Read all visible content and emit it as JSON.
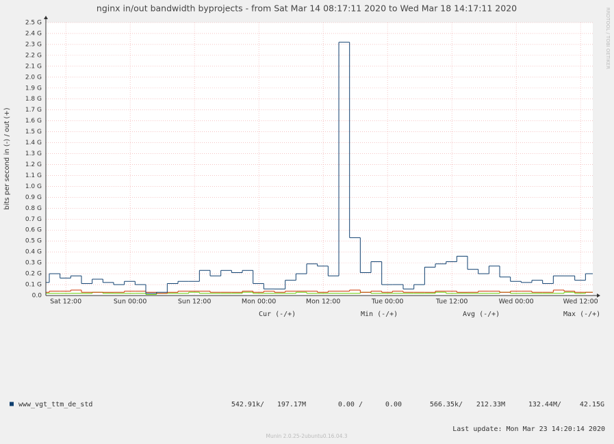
{
  "chart_data": {
    "type": "step",
    "title": "nginx in/out bandwidth byprojects - from Sat Mar 14 08:17:11 2020 to Wed Mar 18 14:17:11 2020",
    "y_label": "bits per second in (-) / out (+)",
    "watermark": "RRDTOOL / TOBI OETIKER",
    "x": [
      0,
      0.64,
      2.64,
      4.64,
      6.64,
      8.64,
      10.64,
      12.64,
      14.64,
      16.64,
      18.64,
      20.64,
      22.64,
      24.64,
      26.64,
      28.64,
      30.64,
      32.64,
      34.64,
      36.64,
      38.64,
      40.64,
      42.64,
      44.64,
      46.64,
      48.64,
      50.64,
      52.64,
      54.64,
      56.64,
      58.64,
      60.64,
      62.64,
      64.64,
      66.64,
      68.64,
      70.64,
      72.64,
      74.64,
      76.64,
      78.64,
      80.64,
      82.64,
      84.64,
      86.64,
      88.64,
      90.64,
      92.64,
      94.64,
      96.64,
      98.64,
      100.64
    ],
    "xlim": [
      0,
      102
    ],
    "xticks": [
      {
        "value": 3.72,
        "label": "Sat 12:00"
      },
      {
        "value": 15.72,
        "label": "Sun 00:00"
      },
      {
        "value": 27.72,
        "label": "Sun 12:00"
      },
      {
        "value": 39.72,
        "label": "Mon 00:00"
      },
      {
        "value": 51.72,
        "label": "Mon 12:00"
      },
      {
        "value": 63.72,
        "label": "Tue 00:00"
      },
      {
        "value": 75.72,
        "label": "Tue 12:00"
      },
      {
        "value": 87.72,
        "label": "Wed 00:00"
      },
      {
        "value": 99.72,
        "label": "Wed 12:00"
      }
    ],
    "ylim": [
      0,
      2.5
    ],
    "yticks": [
      {
        "value": 0,
        "label": "0.0"
      },
      {
        "value": 0.1,
        "label": "0.1 G"
      },
      {
        "value": 0.2,
        "label": "0.2 G"
      },
      {
        "value": 0.3,
        "label": "0.3 G"
      },
      {
        "value": 0.4,
        "label": "0.4 G"
      },
      {
        "value": 0.5,
        "label": "0.5 G"
      },
      {
        "value": 0.6,
        "label": "0.6 G"
      },
      {
        "value": 0.7,
        "label": "0.7 G"
      },
      {
        "value": 0.8,
        "label": "0.8 G"
      },
      {
        "value": 0.9,
        "label": "0.9 G"
      },
      {
        "value": 1.0,
        "label": "1.0 G"
      },
      {
        "value": 1.1,
        "label": "1.1 G"
      },
      {
        "value": 1.2,
        "label": "1.2 G"
      },
      {
        "value": 1.3,
        "label": "1.3 G"
      },
      {
        "value": 1.4,
        "label": "1.4 G"
      },
      {
        "value": 1.5,
        "label": "1.5 G"
      },
      {
        "value": 1.6,
        "label": "1.6 G"
      },
      {
        "value": 1.7,
        "label": "1.7 G"
      },
      {
        "value": 1.8,
        "label": "1.8 G"
      },
      {
        "value": 1.9,
        "label": "1.9 G"
      },
      {
        "value": 2.0,
        "label": "2.0 G"
      },
      {
        "value": 2.1,
        "label": "2.1 G"
      },
      {
        "value": 2.2,
        "label": "2.2 G"
      },
      {
        "value": 2.3,
        "label": "2.3 G"
      },
      {
        "value": 2.4,
        "label": "2.4 G"
      },
      {
        "value": 2.5,
        "label": "2.5 G"
      }
    ],
    "grid": true,
    "series": [
      {
        "name": "www_vgt_ttm_de_std",
        "color": "#0f3f6f",
        "values": [
          0.12,
          0.2,
          0.16,
          0.18,
          0.11,
          0.15,
          0.12,
          0.1,
          0.13,
          0.1,
          0.02,
          0.03,
          0.11,
          0.13,
          0.13,
          0.23,
          0.18,
          0.23,
          0.21,
          0.23,
          0.11,
          0.06,
          0.06,
          0.14,
          0.2,
          0.29,
          0.27,
          0.18,
          2.32,
          0.53,
          0.21,
          0.31,
          0.1,
          0.1,
          0.06,
          0.1,
          0.26,
          0.29,
          0.31,
          0.36,
          0.24,
          0.2,
          0.27,
          0.17,
          0.13,
          0.12,
          0.14,
          0.11,
          0.18,
          0.18,
          0.14,
          0.2
        ]
      },
      {
        "color": "#cc3300",
        "values": [
          0.03,
          0.04,
          0.04,
          0.05,
          0.03,
          0.03,
          0.03,
          0.03,
          0.04,
          0.04,
          0.03,
          0.02,
          0.03,
          0.04,
          0.04,
          0.04,
          0.03,
          0.03,
          0.03,
          0.04,
          0.03,
          0.04,
          0.03,
          0.04,
          0.04,
          0.04,
          0.03,
          0.04,
          0.04,
          0.05,
          0.03,
          0.04,
          0.03,
          0.04,
          0.03,
          0.03,
          0.03,
          0.04,
          0.04,
          0.03,
          0.03,
          0.04,
          0.04,
          0.03,
          0.04,
          0.04,
          0.03,
          0.03,
          0.05,
          0.04,
          0.03,
          0.03
        ]
      },
      {
        "color": "#66cc00",
        "values": [
          0.02,
          0.02,
          0.02,
          0.02,
          0.02,
          0.03,
          0.02,
          0.02,
          0.02,
          0.02,
          0.01,
          0.02,
          0.02,
          0.02,
          0.03,
          0.02,
          0.02,
          0.02,
          0.02,
          0.03,
          0.02,
          0.02,
          0.02,
          0.02,
          0.03,
          0.02,
          0.02,
          0.02,
          0.02,
          0.02,
          0.03,
          0.02,
          0.02,
          0.02,
          0.02,
          0.02,
          0.02,
          0.03,
          0.02,
          0.02,
          0.02,
          0.02,
          0.02,
          0.03,
          0.02,
          0.02,
          0.02,
          0.02,
          0.02,
          0.03,
          0.02,
          0.03
        ]
      }
    ],
    "stats": {
      "headers": [
        "Cur (-/+)",
        "Min (-/+)",
        "Avg (-/+)",
        "Max (-/+)"
      ],
      "cells": [
        "542.91k/",
        "197.17M",
        "0.00 /",
        "0.00",
        "566.35k/",
        "212.33M",
        "132.44M/",
        "42.15G"
      ]
    },
    "last_update": "Last update: Mon Mar 23 14:20:14 2020",
    "footer": "Munin 2.0.25-2ubuntu0.16.04.3"
  }
}
